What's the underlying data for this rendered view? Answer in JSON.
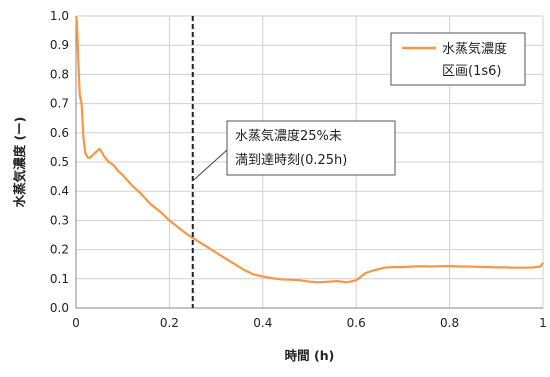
{
  "chart_data": {
    "type": "line",
    "xlabel": "時間 (h)",
    "ylabel": "水蒸気濃度 (ー)",
    "xlim": [
      0,
      1
    ],
    "ylim": [
      0,
      1
    ],
    "x_ticks": [
      "0",
      "0.2",
      "0.4",
      "0.6",
      "0.8",
      "1"
    ],
    "x_tick_values": [
      0,
      0.2,
      0.4,
      0.6,
      0.8,
      1
    ],
    "y_ticks": [
      "0.0",
      "0.1",
      "0.2",
      "0.3",
      "0.4",
      "0.5",
      "0.6",
      "0.7",
      "0.8",
      "0.9",
      "1.0"
    ],
    "y_tick_values": [
      0,
      0.1,
      0.2,
      0.3,
      0.4,
      0.5,
      0.6,
      0.7,
      0.8,
      0.9,
      1.0
    ],
    "grid": {
      "horizontal": true,
      "vertical": true
    },
    "legend_position": "top-right",
    "series": [
      {
        "name_line1": "水蒸気濃度",
        "name_line2": "区画(1s6)",
        "color": "#F79646",
        "x": [
          0,
          0.002,
          0.005,
          0.008,
          0.012,
          0.016,
          0.02,
          0.025,
          0.03,
          0.04,
          0.05,
          0.055,
          0.06,
          0.07,
          0.08,
          0.09,
          0.1,
          0.12,
          0.14,
          0.16,
          0.18,
          0.2,
          0.22,
          0.24,
          0.26,
          0.28,
          0.3,
          0.32,
          0.34,
          0.36,
          0.38,
          0.4,
          0.42,
          0.44,
          0.46,
          0.48,
          0.5,
          0.52,
          0.54,
          0.56,
          0.58,
          0.6,
          0.62,
          0.64,
          0.66,
          0.68,
          0.7,
          0.72,
          0.74,
          0.76,
          0.78,
          0.8,
          0.82,
          0.84,
          0.86,
          0.88,
          0.9,
          0.92,
          0.94,
          0.96,
          0.98,
          0.995,
          1.0
        ],
        "y": [
          1.0,
          0.98,
          0.85,
          0.73,
          0.7,
          0.58,
          0.53,
          0.515,
          0.515,
          0.53,
          0.545,
          0.535,
          0.52,
          0.5,
          0.49,
          0.47,
          0.455,
          0.42,
          0.39,
          0.355,
          0.33,
          0.3,
          0.275,
          0.25,
          0.23,
          0.21,
          0.19,
          0.17,
          0.15,
          0.13,
          0.115,
          0.108,
          0.102,
          0.098,
          0.097,
          0.095,
          0.09,
          0.088,
          0.09,
          0.092,
          0.088,
          0.095,
          0.12,
          0.13,
          0.138,
          0.14,
          0.14,
          0.142,
          0.143,
          0.142,
          0.143,
          0.144,
          0.142,
          0.142,
          0.141,
          0.14,
          0.139,
          0.139,
          0.138,
          0.138,
          0.139,
          0.142,
          0.155
        ]
      }
    ],
    "reference_line": {
      "x": 0.25,
      "label_line1": "水蒸気濃度25%未",
      "label_line2": "満到達時刻(0.25h)"
    }
  }
}
